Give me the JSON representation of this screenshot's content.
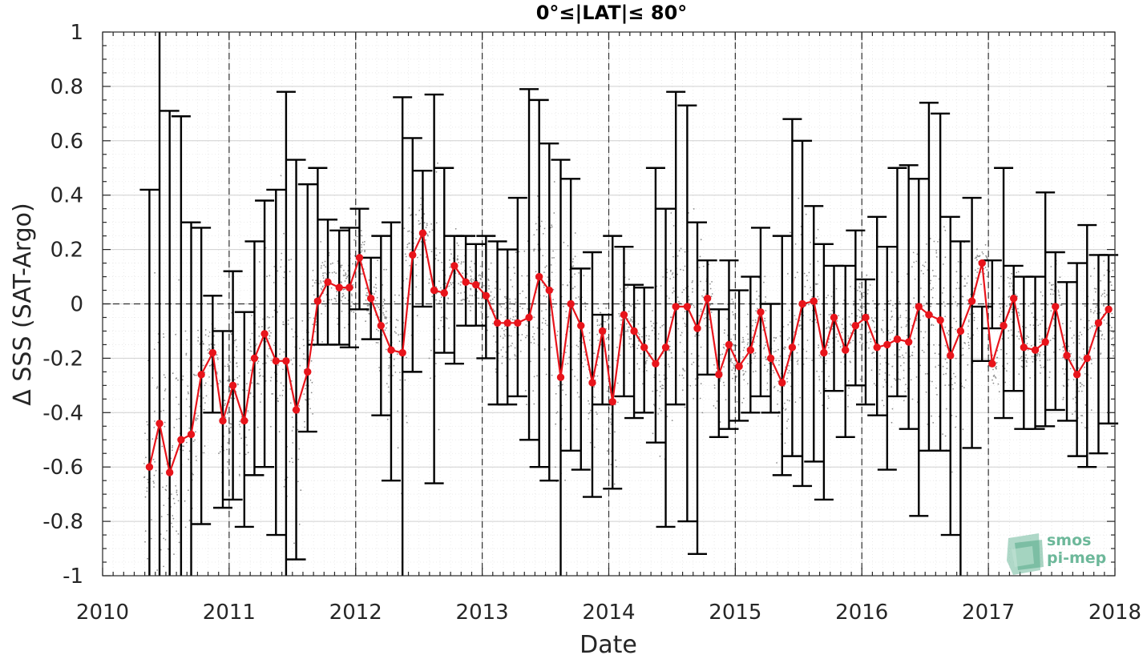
{
  "chart_data": {
    "type": "line",
    "title": "0°≤|LAT|≤ 80°",
    "xlabel": "Date",
    "ylabel": "Δ SSS (SAT-Argo)",
    "xlim": [
      2010,
      2018
    ],
    "ylim": [
      -1,
      1
    ],
    "xticks": [
      "2010",
      "2011",
      "2012",
      "2013",
      "2014",
      "2015",
      "2016",
      "2017",
      "2018"
    ],
    "yticks": [
      "-1",
      "-0.8",
      "-0.6",
      "-0.4",
      "-0.2",
      "0",
      "0.2",
      "0.4",
      "0.6",
      "0.8",
      "1"
    ],
    "grid": true,
    "year_dividers": true,
    "zero_line": true,
    "series": [
      {
        "color": "#e8141b",
        "marker": "circle",
        "x": [
          2010.37,
          2010.45,
          2010.53,
          2010.62,
          2010.7,
          2010.78,
          2010.87,
          2010.95,
          2011.03,
          2011.12,
          2011.2,
          2011.28,
          2011.37,
          2011.45,
          2011.53,
          2011.62,
          2011.7,
          2011.78,
          2011.87,
          2011.95,
          2012.03,
          2012.12,
          2012.2,
          2012.28,
          2012.37,
          2012.45,
          2012.53,
          2012.62,
          2012.7,
          2012.78,
          2012.87,
          2012.95,
          2013.03,
          2013.12,
          2013.2,
          2013.28,
          2013.37,
          2013.45,
          2013.53,
          2013.62,
          2013.7,
          2013.78,
          2013.87,
          2013.95,
          2014.03,
          2014.12,
          2014.2,
          2014.28,
          2014.37,
          2014.45,
          2014.53,
          2014.62,
          2014.7,
          2014.78,
          2014.87,
          2014.95,
          2015.03,
          2015.12,
          2015.2,
          2015.28,
          2015.37,
          2015.45,
          2015.53,
          2015.62,
          2015.7,
          2015.78,
          2015.87,
          2015.95,
          2016.03,
          2016.12,
          2016.2,
          2016.28,
          2016.37,
          2016.45,
          2016.53,
          2016.62,
          2016.7,
          2016.78,
          2016.87,
          2016.95,
          2017.03,
          2017.12,
          2017.2,
          2017.28,
          2017.37,
          2017.45,
          2017.53,
          2017.62,
          2017.7,
          2017.78,
          2017.87,
          2017.95
        ],
        "y": [
          -0.6,
          -0.44,
          -0.62,
          -0.5,
          -0.48,
          -0.26,
          -0.18,
          -0.43,
          -0.3,
          -0.43,
          -0.2,
          -0.11,
          -0.21,
          -0.21,
          -0.39,
          -0.25,
          0.01,
          0.08,
          0.06,
          0.06,
          0.17,
          0.02,
          -0.08,
          -0.17,
          -0.18,
          0.18,
          0.26,
          0.05,
          0.04,
          0.14,
          0.08,
          0.07,
          0.03,
          -0.07,
          -0.07,
          -0.07,
          -0.05,
          0.1,
          0.05,
          -0.27,
          0.0,
          -0.08,
          -0.29,
          -0.1,
          -0.36,
          -0.04,
          -0.1,
          -0.16,
          -0.22,
          -0.16,
          -0.01,
          -0.01,
          -0.09,
          0.02,
          -0.26,
          -0.15,
          -0.23,
          -0.17,
          -0.03,
          -0.2,
          -0.29,
          -0.16,
          0.0,
          0.01,
          -0.18,
          -0.05,
          -0.17,
          -0.08,
          -0.05,
          -0.16,
          -0.15,
          -0.13,
          -0.14,
          -0.01,
          -0.04,
          -0.06,
          -0.19,
          -0.1,
          0.01,
          0.15,
          -0.22,
          -0.08,
          0.02,
          -0.16,
          -0.17,
          -0.14,
          -0.01,
          -0.19,
          -0.26,
          -0.2,
          -0.07,
          -0.02
        ],
        "lower": [
          -1.0,
          -1.0,
          -1.0,
          -1.0,
          -1.0,
          -0.81,
          -0.4,
          -0.75,
          -0.72,
          -0.82,
          -0.63,
          -0.6,
          -0.85,
          -1.0,
          -0.94,
          -0.47,
          -0.15,
          -0.15,
          -0.15,
          -0.16,
          -0.02,
          -0.13,
          -0.41,
          -0.65,
          -1.0,
          -0.25,
          -0.01,
          -0.66,
          -0.18,
          -0.22,
          -0.08,
          -0.08,
          -0.2,
          -0.37,
          -0.37,
          -0.34,
          -0.5,
          -0.6,
          -0.65,
          -1.0,
          -0.54,
          -0.61,
          -0.71,
          -0.37,
          -0.68,
          -0.34,
          -0.42,
          -0.4,
          -0.51,
          -0.82,
          -0.37,
          -0.8,
          -0.92,
          -0.26,
          -0.49,
          -0.46,
          -0.43,
          -0.4,
          -0.34,
          -0.4,
          -0.63,
          -0.56,
          -0.67,
          -0.58,
          -0.72,
          -0.32,
          -0.49,
          -0.3,
          -0.37,
          -0.41,
          -0.61,
          -0.34,
          -0.46,
          -0.78,
          -0.54,
          -0.54,
          -0.85,
          -1.0,
          -0.53,
          -0.21,
          -0.09,
          -0.42,
          -0.32,
          -0.46,
          -0.46,
          -0.45,
          -0.39,
          -0.43,
          -0.56,
          -0.6,
          -0.55,
          -0.44
        ],
        "upper": [
          0.42,
          1.0,
          0.71,
          0.69,
          0.3,
          0.28,
          0.03,
          -0.1,
          0.12,
          -0.03,
          0.23,
          0.38,
          0.42,
          0.78,
          0.53,
          0.44,
          0.5,
          0.31,
          0.27,
          0.28,
          0.35,
          0.17,
          0.25,
          0.3,
          0.76,
          0.61,
          0.49,
          0.77,
          0.5,
          0.25,
          0.25,
          0.22,
          0.25,
          0.23,
          0.2,
          0.39,
          0.79,
          0.75,
          0.59,
          0.53,
          0.46,
          0.13,
          0.19,
          -0.04,
          0.25,
          0.21,
          0.07,
          0.06,
          0.5,
          0.35,
          0.78,
          0.73,
          0.3,
          0.16,
          -0.02,
          0.16,
          0.05,
          0.1,
          0.28,
          0.0,
          0.25,
          0.68,
          0.6,
          0.36,
          0.22,
          0.14,
          0.14,
          0.27,
          0.09,
          0.32,
          0.21,
          0.5,
          0.51,
          0.46,
          0.74,
          0.7,
          0.32,
          0.23,
          0.39,
          -0.01,
          0.16,
          0.5,
          0.14,
          0.1,
          0.1,
          0.41,
          0.19,
          0.08,
          0.15,
          0.29,
          0.18,
          0.18
        ]
      }
    ]
  },
  "logo": {
    "line1": "smos",
    "line2": "pi-mep"
  },
  "colors": {
    "series": "#e8141b",
    "errorbar": "#000000",
    "scatter": "#8c8c8c",
    "logo": "#6db89a"
  }
}
